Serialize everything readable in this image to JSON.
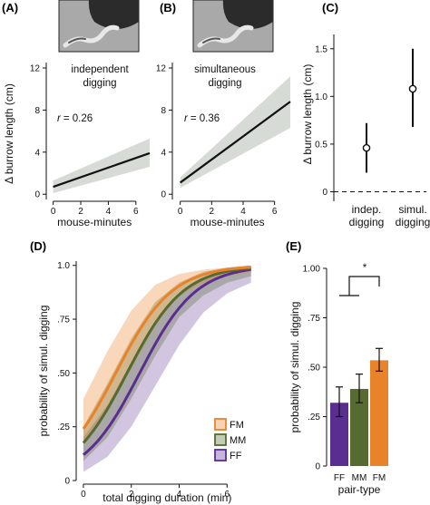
{
  "panels": {
    "A": {
      "label": "(A)",
      "annotation_lines": [
        "independent",
        "digging"
      ],
      "r_var": "r",
      "r_value": "= 0.26"
    },
    "B": {
      "label": "(B)",
      "annotation_lines": [
        "simultaneous",
        "digging"
      ],
      "r_var": "r",
      "r_value": "= 0.36"
    },
    "C": {
      "label": "(C)"
    },
    "D": {
      "label": "(D)"
    },
    "E": {
      "label": "(E)",
      "sig": "*"
    }
  },
  "colors": {
    "FM": "#e8832a",
    "MM": "#556b2f",
    "FF": "#5a2d91",
    "ci_gray": "#d6dbd6"
  },
  "chart_data": [
    {
      "id": "A",
      "type": "line",
      "title": "independent digging",
      "xlabel": "mouse-minutes",
      "ylabel": "Δ burrow length (cm)",
      "xlim": [
        -0.5,
        7
      ],
      "ylim": [
        -0.5,
        12
      ],
      "xticks": [
        0,
        2,
        4,
        6
      ],
      "yticks": [
        0,
        4,
        8,
        12
      ],
      "annotation": "r = 0.26",
      "series": [
        {
          "x": [
            0,
            7
          ],
          "y": [
            0.7,
            3.9
          ],
          "ci_low": [
            0.1,
            2.6
          ],
          "ci_high": [
            1.3,
            5.3
          ]
        }
      ]
    },
    {
      "id": "B",
      "type": "line",
      "title": "simultaneous digging",
      "xlabel": "mouse-minutes",
      "xlim": [
        -0.5,
        7
      ],
      "ylim": [
        -0.5,
        12
      ],
      "xticks": [
        0,
        2,
        4,
        6
      ],
      "yticks": [
        0,
        4,
        8,
        12
      ],
      "annotation": "r = 0.36",
      "series": [
        {
          "x": [
            0,
            7
          ],
          "y": [
            1.1,
            8.8
          ],
          "ci_low": [
            0.6,
            6.3
          ],
          "ci_high": [
            1.6,
            11.2
          ]
        }
      ]
    },
    {
      "id": "C",
      "type": "scatter",
      "ylabel": "Δ burrow length (cm)",
      "categories": [
        "indep.\ndigging",
        "simul.\ndigging"
      ],
      "category_lines": [
        [
          "indep.",
          "digging"
        ],
        [
          "simul.",
          "digging"
        ]
      ],
      "values": [
        0.46,
        1.08
      ],
      "err_low": [
        0.2,
        0.68
      ],
      "err_high": [
        0.72,
        1.5
      ],
      "ylim": [
        -0.1,
        1.65
      ],
      "yticks": [
        0,
        0.5,
        1.0,
        1.5
      ],
      "ytick_labels": [
        "0",
        "0.5",
        "1.0",
        "1.5"
      ],
      "reference_line": 0
    },
    {
      "id": "D",
      "type": "line",
      "xlabel": "total digging duration (min)",
      "ylabel": "probability of simul. digging",
      "xlim": [
        -0.3,
        7.2
      ],
      "ylim": [
        0,
        1.02
      ],
      "xticks": [
        0,
        2,
        4,
        6
      ],
      "yticks": [
        0,
        0.25,
        0.5,
        0.75,
        1.0
      ],
      "ytick_labels": [
        "0",
        ".25",
        ".50",
        ".75",
        "1.0"
      ],
      "legend": "bottom-right",
      "series": [
        {
          "name": "FM",
          "intercept": -1.15,
          "slope": 0.85,
          "ci": [
            {
              "x": 0,
              "low": 0.17,
              "high": 0.38
            },
            {
              "x": 1,
              "low": 0.33,
              "high": 0.6
            },
            {
              "x": 2,
              "low": 0.52,
              "high": 0.79
            },
            {
              "x": 3,
              "low": 0.72,
              "high": 0.91
            },
            {
              "x": 4,
              "low": 0.86,
              "high": 0.96
            },
            {
              "x": 5,
              "low": 0.92,
              "high": 0.98
            },
            {
              "x": 6,
              "low": 0.95,
              "high": 0.99
            },
            {
              "x": 7,
              "low": 0.97,
              "high": 1.0
            }
          ]
        },
        {
          "name": "MM",
          "intercept": -1.55,
          "slope": 0.85,
          "ci": [
            {
              "x": 0,
              "low": 0.09,
              "high": 0.25
            },
            {
              "x": 1,
              "low": 0.2,
              "high": 0.45
            },
            {
              "x": 2,
              "low": 0.38,
              "high": 0.66
            },
            {
              "x": 3,
              "low": 0.58,
              "high": 0.83
            },
            {
              "x": 4,
              "low": 0.76,
              "high": 0.92
            },
            {
              "x": 5,
              "low": 0.86,
              "high": 0.97
            },
            {
              "x": 6,
              "low": 0.92,
              "high": 0.99
            },
            {
              "x": 7,
              "low": 0.95,
              "high": 1.0
            }
          ]
        },
        {
          "name": "FF",
          "intercept": -2.0,
          "slope": 0.85,
          "ci": [
            {
              "x": 0,
              "low": 0.04,
              "high": 0.2
            },
            {
              "x": 1,
              "low": 0.11,
              "high": 0.35
            },
            {
              "x": 2,
              "low": 0.25,
              "high": 0.55
            },
            {
              "x": 3,
              "low": 0.44,
              "high": 0.74
            },
            {
              "x": 4,
              "low": 0.63,
              "high": 0.87
            },
            {
              "x": 5,
              "low": 0.78,
              "high": 0.94
            },
            {
              "x": 6,
              "low": 0.87,
              "high": 0.97
            },
            {
              "x": 7,
              "low": 0.92,
              "high": 0.99
            }
          ]
        }
      ]
    },
    {
      "id": "E",
      "type": "bar",
      "xlabel": "pair-type",
      "ylabel": "probability of simul. digging",
      "categories": [
        "FF",
        "MM",
        "FM"
      ],
      "values": [
        0.32,
        0.39,
        0.535
      ],
      "err_low": [
        0.25,
        0.32,
        0.48
      ],
      "err_high": [
        0.4,
        0.465,
        0.595
      ],
      "ylim": [
        0,
        1.0
      ],
      "yticks": [
        0,
        0.25,
        0.5,
        0.75,
        1.0
      ],
      "ytick_labels": [
        "0",
        ".25",
        ".50",
        ".75",
        "1.00"
      ],
      "significance": {
        "between": [
          "FF",
          "FM"
        ],
        "label": "*"
      }
    }
  ]
}
